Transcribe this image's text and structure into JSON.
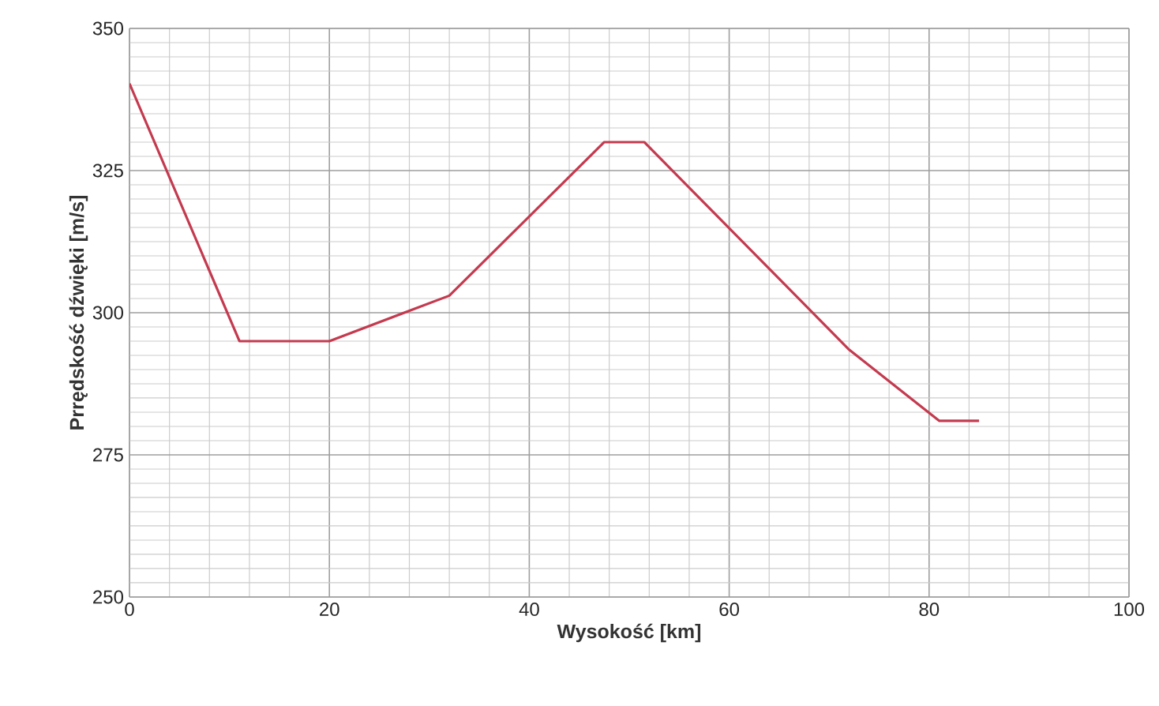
{
  "chart_data": {
    "type": "line",
    "xlabel": "Wysokość [km]",
    "ylabel": "Prrędskość dźwięki [m/s]",
    "x": [
      0,
      11,
      20,
      32,
      47.5,
      51.5,
      72,
      81,
      85
    ],
    "series": [
      {
        "color": "#c43a4f",
        "values": [
          340.3,
          295,
          295,
          303,
          330,
          330,
          293.5,
          281,
          281
        ]
      }
    ],
    "xlim": [
      0,
      100
    ],
    "xticks": [
      0,
      20,
      40,
      60,
      80,
      100
    ],
    "ylim": [
      250,
      350
    ],
    "yticks": [
      250,
      275,
      300,
      325,
      350
    ],
    "grid": true,
    "marker": "none",
    "line_style": "solid"
  }
}
